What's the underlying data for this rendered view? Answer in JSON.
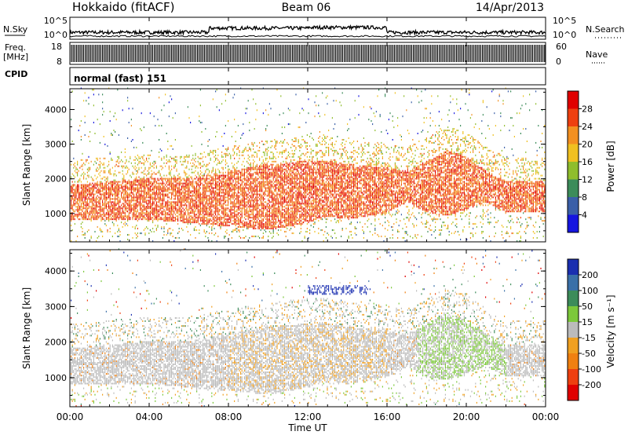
{
  "header": {
    "station": "Hokkaido (fitACF)",
    "beam": "Beam 06",
    "date": "14/Apr/2013"
  },
  "strips": {
    "nsky_label": "N.Sky",
    "nsearch_label": "N.Search",
    "nsky_ticks": [
      "10^5",
      "10^0"
    ],
    "nsearch_ticks": [
      "10^5",
      "10^0"
    ],
    "freq_label_1": "Freq.",
    "freq_label_2": "[MHz]",
    "freq_ticks": [
      "18",
      "8"
    ],
    "nave_label": "Nave",
    "nave_ticks": [
      "60",
      "0"
    ],
    "cpid_label": "CPID",
    "cpid_value": "normal (fast) 151"
  },
  "time_axis": {
    "label": "Time UT",
    "ticks": [
      "00:00",
      "04:00",
      "08:00",
      "12:00",
      "16:00",
      "20:00",
      "00:00"
    ]
  },
  "panels": {
    "power": {
      "ylabel": "Slant Range [km]",
      "colorbar_label": "Power [dB]"
    },
    "velocity": {
      "ylabel": "Slant Range [km]",
      "colorbar_label": "Velocity [m s⁻¹]"
    }
  },
  "chart_data": [
    {
      "type": "heatmap",
      "title": "Beam 06",
      "xlabel": "Time UT",
      "ylabel": "Slant Range [km]",
      "x_range_hours": [
        0,
        24
      ],
      "x_ticks": [
        "00:00",
        "04:00",
        "08:00",
        "12:00",
        "16:00",
        "20:00",
        "00:00"
      ],
      "ylim": [
        180,
        4600
      ],
      "y_ticks": [
        1000,
        2000,
        3000,
        4000
      ],
      "colorbar": {
        "label": "Power [dB]",
        "ticks": [
          4,
          8,
          12,
          16,
          20,
          24,
          28
        ],
        "range": [
          0,
          30
        ],
        "colors": [
          "#1515e0",
          "#3a5fa8",
          "#3c8c5a",
          "#8fbd2c",
          "#f0c020",
          "#f39020",
          "#ee4010",
          "#e00000"
        ]
      },
      "echo_band_km": {
        "hours": [
          0,
          2,
          4,
          6,
          8,
          10,
          12,
          13,
          14,
          16,
          17,
          18,
          19,
          20,
          21,
          22,
          24
        ],
        "lower": [
          800,
          800,
          800,
          700,
          600,
          500,
          700,
          900,
          800,
          1000,
          1300,
          1000,
          900,
          1100,
          1300,
          1000,
          1000
        ],
        "upper": [
          1800,
          1900,
          2000,
          2000,
          2200,
          2400,
          2500,
          2500,
          2400,
          2300,
          2200,
          2500,
          2800,
          2600,
          2200,
          1900,
          1900
        ]
      }
    },
    {
      "type": "heatmap",
      "xlabel": "Time UT",
      "ylabel": "Slant Range [km]",
      "x_range_hours": [
        0,
        24
      ],
      "x_ticks": [
        "00:00",
        "04:00",
        "08:00",
        "12:00",
        "16:00",
        "20:00",
        "00:00"
      ],
      "ylim": [
        180,
        4600
      ],
      "y_ticks": [
        1000,
        2000,
        3000,
        4000
      ],
      "colorbar": {
        "label": "Velocity [m s⁻¹]",
        "ticks": [
          200,
          100,
          50,
          15,
          -15,
          -50,
          -100,
          -200
        ],
        "colors": [
          "#1a2fb0",
          "#3a70a8",
          "#3c8c5a",
          "#7cc83a",
          "#bbbbbb",
          "#f0a020",
          "#f08010",
          "#ee4010",
          "#e00000"
        ]
      },
      "notes_blue_cluster_hours": [
        12,
        15
      ],
      "notes_blue_cluster_km": [
        3300,
        3600
      ]
    }
  ]
}
